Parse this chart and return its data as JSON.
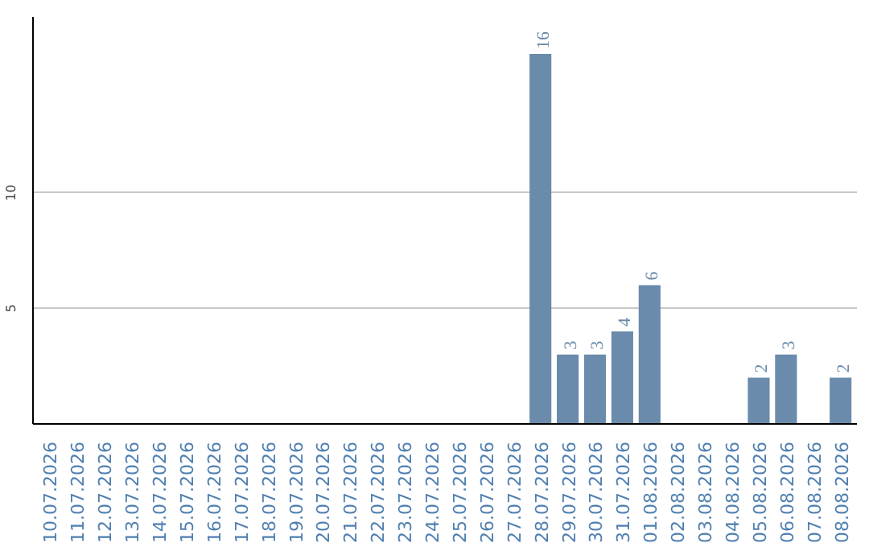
{
  "chart_data": {
    "type": "bar",
    "categories": [
      "10.07.2026",
      "11.07.2026",
      "12.07.2026",
      "13.07.2026",
      "14.07.2026",
      "15.07.2026",
      "16.07.2026",
      "17.07.2026",
      "18.07.2026",
      "19.07.2026",
      "20.07.2026",
      "21.07.2026",
      "22.07.2026",
      "23.07.2026",
      "24.07.2026",
      "25.07.2026",
      "26.07.2026",
      "27.07.2026",
      "28.07.2026",
      "29.07.2026",
      "30.07.2026",
      "31.07.2026",
      "01.08.2026",
      "02.08.2026",
      "03.08.2026",
      "04.08.2026",
      "05.08.2026",
      "06.08.2026",
      "07.08.2026",
      "08.08.2026"
    ],
    "values": [
      0,
      0,
      0,
      0,
      0,
      0,
      0,
      0,
      0,
      0,
      0,
      0,
      0,
      0,
      0,
      0,
      0,
      0,
      16,
      3,
      3,
      4,
      6,
      0,
      0,
      0,
      2,
      3,
      0,
      2
    ],
    "value_labels": [
      null,
      null,
      null,
      null,
      null,
      null,
      null,
      null,
      null,
      null,
      null,
      null,
      null,
      null,
      null,
      null,
      null,
      null,
      "16",
      "3",
      "3",
      "4",
      "6",
      null,
      null,
      null,
      "2",
      "3",
      null,
      "2"
    ],
    "color": "#6a8bab",
    "ylim": [
      0,
      17.6
    ],
    "yticks": [
      5,
      10
    ],
    "grid": "y"
  }
}
